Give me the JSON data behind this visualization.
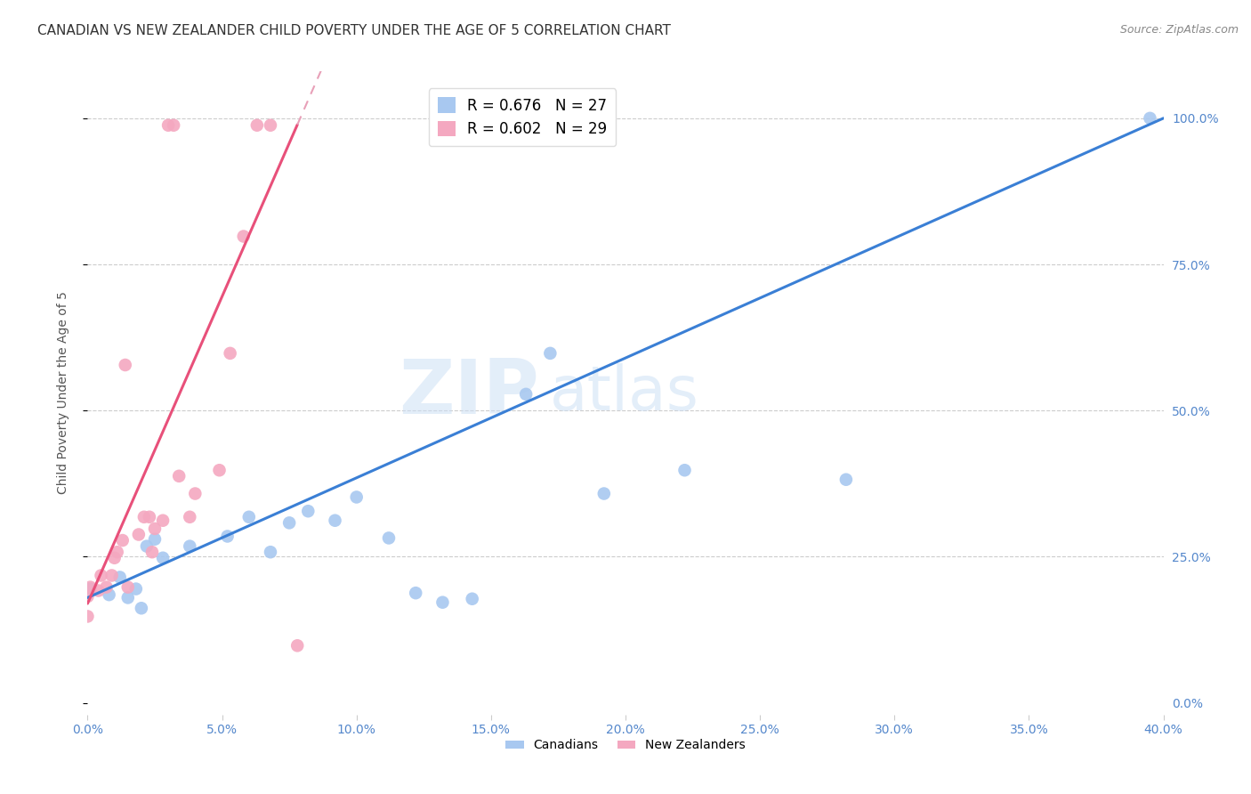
{
  "title": "CANADIAN VS NEW ZEALANDER CHILD POVERTY UNDER THE AGE OF 5 CORRELATION CHART",
  "source": "Source: ZipAtlas.com",
  "ylabel": "Child Poverty Under the Age of 5",
  "xlim": [
    0.0,
    0.4
  ],
  "ylim": [
    -0.02,
    1.08
  ],
  "canadians_x": [
    0.001,
    0.008,
    0.012,
    0.015,
    0.018,
    0.02,
    0.022,
    0.025,
    0.028,
    0.038,
    0.052,
    0.06,
    0.068,
    0.075,
    0.082,
    0.092,
    0.1,
    0.112,
    0.122,
    0.132,
    0.143,
    0.163,
    0.172,
    0.192,
    0.222,
    0.282,
    0.395
  ],
  "canadians_y": [
    0.195,
    0.185,
    0.215,
    0.18,
    0.195,
    0.162,
    0.268,
    0.28,
    0.248,
    0.268,
    0.285,
    0.318,
    0.258,
    0.308,
    0.328,
    0.312,
    0.352,
    0.282,
    0.188,
    0.172,
    0.178,
    0.528,
    0.598,
    0.358,
    0.398,
    0.382,
    1.0
  ],
  "nz_x": [
    0.0,
    0.0,
    0.001,
    0.004,
    0.005,
    0.007,
    0.009,
    0.01,
    0.011,
    0.013,
    0.014,
    0.015,
    0.019,
    0.021,
    0.023,
    0.024,
    0.025,
    0.028,
    0.03,
    0.032,
    0.034,
    0.038,
    0.04,
    0.049,
    0.053,
    0.058,
    0.063,
    0.068,
    0.078
  ],
  "nz_y": [
    0.148,
    0.182,
    0.198,
    0.192,
    0.218,
    0.198,
    0.218,
    0.248,
    0.258,
    0.278,
    0.578,
    0.198,
    0.288,
    0.318,
    0.318,
    0.258,
    0.298,
    0.312,
    0.988,
    0.988,
    0.388,
    0.318,
    0.358,
    0.398,
    0.598,
    0.798,
    0.988,
    0.988,
    0.098
  ],
  "nz_line_data_x": [
    0.0,
    0.08
  ],
  "canadian_color": "#a8c8f0",
  "nz_color": "#f4a8c0",
  "canadian_line_color": "#3a7fd5",
  "nz_line_color": "#e8507a",
  "nz_dash_line_color": "#e8a0b8",
  "watermark_zip": "ZIP",
  "watermark_atlas": "atlas",
  "legend_canadian_r": "R = 0.676",
  "legend_canadian_n": "N = 27",
  "legend_nz_r": "R = 0.602",
  "legend_nz_n": "N = 29",
  "title_fontsize": 11,
  "axis_label_fontsize": 10,
  "tick_fontsize": 10,
  "legend_fontsize": 12
}
